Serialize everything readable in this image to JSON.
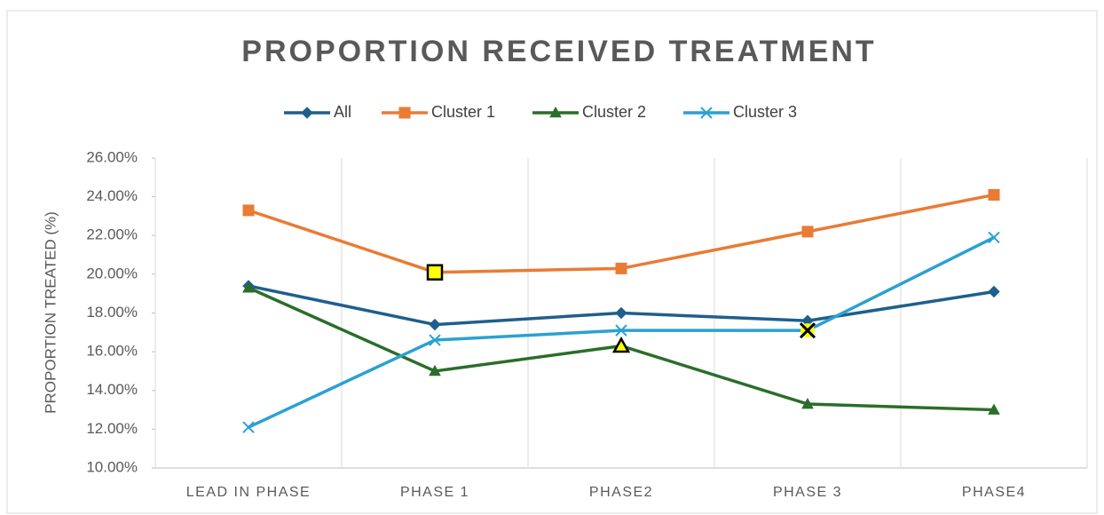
{
  "chart_data": {
    "type": "line",
    "title": "PROPORTION  RECEIVED TREATMENT",
    "y_label": "PROPORTION TREATED (%)",
    "categories": [
      "LEAD IN PHASE",
      "PHASE 1",
      "PHASE2",
      "PHASE 3",
      "PHASE4"
    ],
    "series": [
      {
        "name": "All",
        "color": "#1f5f8b",
        "marker": "diamond",
        "values": [
          19.4,
          17.4,
          18.0,
          17.6,
          19.1
        ]
      },
      {
        "name": "Cluster 1",
        "color": "#e97b35",
        "marker": "square",
        "highlight_index": 1,
        "values": [
          23.3,
          20.1,
          20.3,
          22.2,
          24.1
        ]
      },
      {
        "name": "Cluster 2",
        "color": "#2a6e2a",
        "marker": "triangle",
        "highlight_index": 2,
        "values": [
          19.3,
          15.0,
          16.3,
          13.3,
          13.0
        ]
      },
      {
        "name": "Cluster 3",
        "color": "#2aa1d3",
        "marker": "cross",
        "highlight_index": 3,
        "values": [
          12.1,
          16.6,
          17.1,
          17.1,
          21.9
        ]
      }
    ],
    "ylim": [
      10,
      26
    ],
    "yticks": [
      {
        "value": 10,
        "label": "10.00%"
      },
      {
        "value": 12,
        "label": "12.00%"
      },
      {
        "value": 14,
        "label": "14.00%"
      },
      {
        "value": 16,
        "label": "16.00%"
      },
      {
        "value": 18,
        "label": "18.00%"
      },
      {
        "value": 20,
        "label": "20.00%"
      },
      {
        "value": 22,
        "label": "22.00%"
      },
      {
        "value": 24,
        "label": "24.00%"
      },
      {
        "value": 26,
        "label": "26.00%"
      }
    ],
    "legend": "top"
  }
}
